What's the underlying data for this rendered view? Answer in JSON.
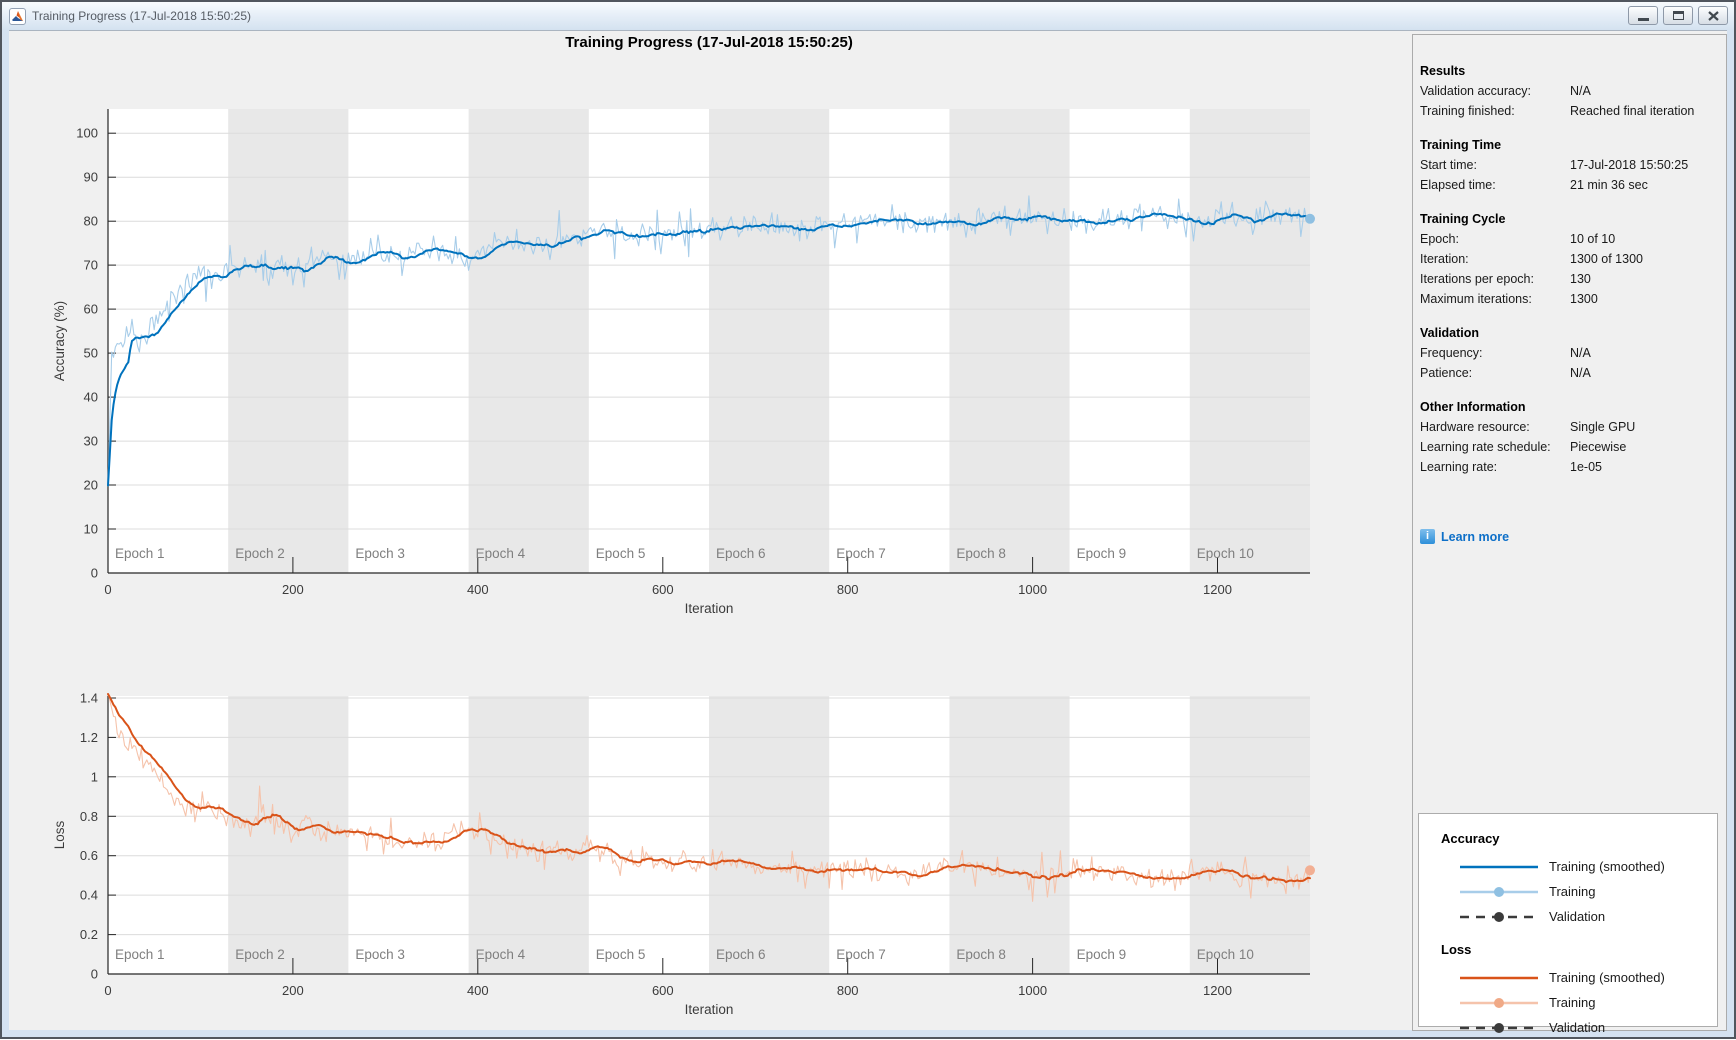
{
  "window": {
    "title": "Training Progress (17-Jul-2018 15:50:25)",
    "controls": {
      "minimize": "minimize",
      "maximize": "maximize",
      "close": "close"
    }
  },
  "figure_title": "Training Progress (17-Jul-2018 15:50:25)",
  "sidebar": {
    "sections": [
      {
        "header": "Results",
        "rows": [
          [
            "Validation accuracy:",
            "N/A"
          ],
          [
            "Training finished:",
            "Reached final iteration"
          ]
        ]
      },
      {
        "header": "Training Time",
        "rows": [
          [
            "Start time:",
            "17-Jul-2018 15:50:25"
          ],
          [
            "Elapsed time:",
            "21 min 36 sec"
          ]
        ]
      },
      {
        "header": "Training Cycle",
        "rows": [
          [
            "Epoch:",
            "10 of 10"
          ],
          [
            "Iteration:",
            "1300 of 1300"
          ],
          [
            "Iterations per epoch:",
            "130"
          ],
          [
            "Maximum iterations:",
            "1300"
          ]
        ]
      },
      {
        "header": "Validation",
        "rows": [
          [
            "Frequency:",
            "N/A"
          ],
          [
            "Patience:",
            "N/A"
          ]
        ]
      },
      {
        "header": "Other Information",
        "rows": [
          [
            "Hardware resource:",
            "Single GPU"
          ],
          [
            "Learning rate schedule:",
            "Piecewise"
          ],
          [
            "Learning rate:",
            "1e-05"
          ]
        ]
      }
    ],
    "learn_more": "Learn more"
  },
  "legend": {
    "groups": [
      {
        "title": "Accuracy",
        "items": [
          {
            "label": "Training (smoothed)",
            "style": "solid",
            "color": "#0072BD"
          },
          {
            "label": "Training",
            "style": "line-dot",
            "color": "#A8CDE9",
            "dot": "#8FC0E2"
          },
          {
            "label": "Validation",
            "style": "dash-dot",
            "color": "#3B3B3B",
            "dot": "#3B3B3B"
          }
        ]
      },
      {
        "title": "Loss",
        "items": [
          {
            "label": "Training (smoothed)",
            "style": "solid",
            "color": "#D95319"
          },
          {
            "label": "Training",
            "style": "line-dot",
            "color": "#F5C3AB",
            "dot": "#F0A986"
          },
          {
            "label": "Validation",
            "style": "dash-dot",
            "color": "#3B3B3B",
            "dot": "#3B3B3B"
          }
        ]
      }
    ]
  },
  "colors": {
    "accent_blue": "#0072BD",
    "light_blue": "#A8CDE9",
    "blue_marker": "#8FC0E2",
    "accent_orange": "#D95319",
    "light_orange": "#F5C3AB",
    "orange_marker": "#F2AF93",
    "validation_gray": "#3B3B3B",
    "band_gray": "#E8E8E8",
    "grid": "#DCDCDC",
    "axis": "#262626",
    "epoch_label": "#7F7F7F",
    "tick_label": "#3C3C3C",
    "figure_bg": "#F0F0F0",
    "panel_border": "#ABABAB",
    "link_blue": "#0D6FC8"
  },
  "chart_data": [
    {
      "type": "line",
      "name": "accuracy",
      "title": "Training Progress (17-Jul-2018 15:50:25)",
      "xlabel": "Iteration",
      "ylabel": "Accuracy (%)",
      "xlim": [
        0,
        1300
      ],
      "ylim": [
        0,
        105.5
      ],
      "xticks": [
        0,
        200,
        400,
        600,
        800,
        1000,
        1200
      ],
      "yticks": [
        0,
        10,
        20,
        30,
        40,
        50,
        60,
        70,
        80,
        90,
        100
      ],
      "grid": "horizontal",
      "epochs": {
        "count": 10,
        "iterations_per_epoch": 130,
        "labels": [
          "Epoch 1",
          "Epoch 2",
          "Epoch 3",
          "Epoch 4",
          "Epoch 5",
          "Epoch 6",
          "Epoch 7",
          "Epoch 8",
          "Epoch 9",
          "Epoch 10"
        ]
      },
      "seed": 11,
      "wiggle": [
        0.55,
        23,
        0.4,
        9.7
      ],
      "series": [
        {
          "name": "Training (smoothed)",
          "role": "smoothed",
          "color": "#0072BD",
          "anchors": [
            [
              0,
              20
            ],
            [
              4,
              50
            ],
            [
              10,
              52
            ],
            [
              18,
              53
            ],
            [
              26,
              57
            ],
            [
              34,
              51.5
            ],
            [
              44,
              55
            ],
            [
              56,
              59
            ],
            [
              70,
              63
            ],
            [
              85,
              66
            ],
            [
              100,
              67
            ],
            [
              115,
              66.5
            ],
            [
              130,
              69.5
            ],
            [
              150,
              70.5
            ],
            [
              170,
              71
            ],
            [
              195,
              70.5
            ],
            [
              215,
              69.5
            ],
            [
              235,
              72
            ],
            [
              255,
              70.8
            ],
            [
              275,
              71.8
            ],
            [
              295,
              73
            ],
            [
              315,
              72
            ],
            [
              335,
              73.5
            ],
            [
              355,
              73.2
            ],
            [
              375,
              72.5
            ],
            [
              390,
              70.8
            ],
            [
              410,
              73.5
            ],
            [
              430,
              75
            ],
            [
              450,
              75
            ],
            [
              470,
              74.5
            ],
            [
              490,
              76
            ],
            [
              515,
              77
            ],
            [
              540,
              77.5
            ],
            [
              565,
              76.3
            ],
            [
              590,
              77
            ],
            [
              615,
              78
            ],
            [
              640,
              77.8
            ],
            [
              665,
              78.2
            ],
            [
              690,
              78.4
            ],
            [
              715,
              78.3
            ],
            [
              740,
              79
            ],
            [
              765,
              78.6
            ],
            [
              790,
              79.3
            ],
            [
              815,
              79.6
            ],
            [
              840,
              79.2
            ],
            [
              865,
              80.2
            ],
            [
              890,
              79.6
            ],
            [
              915,
              80.3
            ],
            [
              940,
              79.9
            ],
            [
              965,
              80.3
            ],
            [
              990,
              79.8
            ],
            [
              1015,
              80.3
            ],
            [
              1040,
              80.8
            ],
            [
              1065,
              80.1
            ],
            [
              1090,
              80.4
            ],
            [
              1115,
              80.8
            ],
            [
              1140,
              80.2
            ],
            [
              1165,
              80.5
            ],
            [
              1190,
              80.1
            ],
            [
              1215,
              80.5
            ],
            [
              1240,
              80.2
            ],
            [
              1265,
              80.6
            ],
            [
              1290,
              80.3
            ],
            [
              1300,
              80.8
            ]
          ]
        },
        {
          "name": "Training",
          "role": "raw",
          "color": "#A8CDE9",
          "marker_color": "#8FC0E2",
          "noise_sd": 2.4,
          "spike": 5
        },
        {
          "name": "Validation",
          "role": "validation",
          "values": "N/A"
        }
      ]
    },
    {
      "type": "line",
      "name": "loss",
      "xlabel": "Iteration",
      "ylabel": "Loss",
      "xlim": [
        0,
        1300
      ],
      "ylim": [
        0,
        1.41
      ],
      "xticks": [
        0,
        200,
        400,
        600,
        800,
        1000,
        1200
      ],
      "yticks": [
        0,
        0.2,
        0.4,
        0.6,
        0.8,
        1,
        1.2,
        1.4
      ],
      "grid": "horizontal",
      "epochs": {
        "count": 10,
        "iterations_per_epoch": 130,
        "labels": [
          "Epoch 1",
          "Epoch 2",
          "Epoch 3",
          "Epoch 4",
          "Epoch 5",
          "Epoch 6",
          "Epoch 7",
          "Epoch 8",
          "Epoch 9",
          "Epoch 10"
        ]
      },
      "seed": 29,
      "wiggle": [
        0.013,
        21,
        0.009,
        8.3
      ],
      "series": [
        {
          "name": "Training (smoothed)",
          "role": "smoothed",
          "color": "#D95319",
          "anchors": [
            [
              0,
              1.4
            ],
            [
              10,
              1.23
            ],
            [
              20,
              1.16
            ],
            [
              32,
              1.13
            ],
            [
              45,
              1.06
            ],
            [
              58,
              0.98
            ],
            [
              70,
              0.91
            ],
            [
              82,
              0.86
            ],
            [
              95,
              0.83
            ],
            [
              108,
              0.85
            ],
            [
              120,
              0.8
            ],
            [
              132,
              0.77
            ],
            [
              148,
              0.75
            ],
            [
              165,
              0.8
            ],
            [
              180,
              0.76
            ],
            [
              198,
              0.74
            ],
            [
              212,
              0.77
            ],
            [
              228,
              0.72
            ],
            [
              245,
              0.73
            ],
            [
              260,
              0.7
            ],
            [
              275,
              0.72
            ],
            [
              292,
              0.69
            ],
            [
              310,
              0.66
            ],
            [
              325,
              0.67
            ],
            [
              340,
              0.69
            ],
            [
              355,
              0.67
            ],
            [
              372,
              0.71
            ],
            [
              388,
              0.74
            ],
            [
              402,
              0.7
            ],
            [
              418,
              0.66
            ],
            [
              435,
              0.65
            ],
            [
              452,
              0.64
            ],
            [
              468,
              0.63
            ],
            [
              485,
              0.63
            ],
            [
              500,
              0.6
            ],
            [
              518,
              0.63
            ],
            [
              535,
              0.6
            ],
            [
              552,
              0.59
            ],
            [
              570,
              0.58
            ],
            [
              588,
              0.59
            ],
            [
              605,
              0.57
            ],
            [
              622,
              0.58
            ],
            [
              640,
              0.55
            ],
            [
              658,
              0.57
            ],
            [
              675,
              0.55
            ],
            [
              692,
              0.54
            ],
            [
              710,
              0.55
            ],
            [
              728,
              0.54
            ],
            [
              745,
              0.53
            ],
            [
              762,
              0.54
            ],
            [
              780,
              0.53
            ],
            [
              798,
              0.52
            ],
            [
              815,
              0.54
            ],
            [
              832,
              0.52
            ],
            [
              850,
              0.53
            ],
            [
              868,
              0.52
            ],
            [
              885,
              0.53
            ],
            [
              902,
              0.52
            ],
            [
              920,
              0.52
            ],
            [
              938,
              0.53
            ],
            [
              955,
              0.51
            ],
            [
              972,
              0.53
            ],
            [
              990,
              0.51
            ],
            [
              1008,
              0.5
            ],
            [
              1025,
              0.52
            ],
            [
              1042,
              0.5
            ],
            [
              1060,
              0.51
            ],
            [
              1078,
              0.5
            ],
            [
              1095,
              0.49
            ],
            [
              1112,
              0.51
            ],
            [
              1130,
              0.49
            ],
            [
              1148,
              0.5
            ],
            [
              1165,
              0.49
            ],
            [
              1182,
              0.51
            ],
            [
              1200,
              0.5
            ],
            [
              1218,
              0.49
            ],
            [
              1235,
              0.5
            ],
            [
              1252,
              0.49
            ],
            [
              1270,
              0.48
            ],
            [
              1285,
              0.49
            ],
            [
              1300,
              0.47
            ]
          ]
        },
        {
          "name": "Training",
          "role": "raw",
          "color": "#F5C3AB",
          "marker_color": "#F2AF93",
          "noise_sd": 0.05,
          "spike": 0.1
        },
        {
          "name": "Validation",
          "role": "validation",
          "values": "N/A"
        }
      ]
    }
  ]
}
